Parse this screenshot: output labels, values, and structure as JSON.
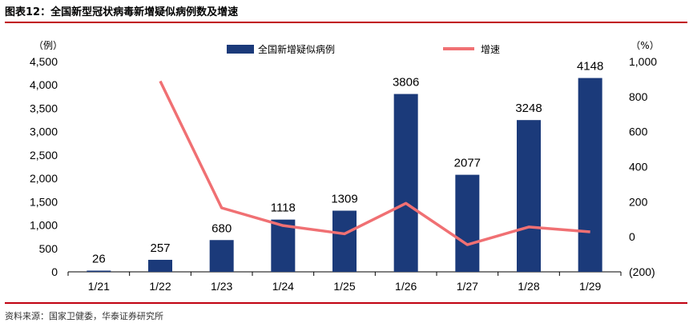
{
  "header": {
    "title": "图表12：全国新型冠状病毒新增疑似病例数及增速"
  },
  "footer": {
    "source": "资料来源：国家卫健委，华泰证券研究所"
  },
  "chart_data": {
    "type": "bar",
    "categories": [
      "1/21",
      "1/22",
      "1/23",
      "1/24",
      "1/25",
      "1/26",
      "1/27",
      "1/28",
      "1/29"
    ],
    "series": [
      {
        "name": "全国新增疑似病例",
        "type": "bar",
        "axis": "left",
        "color": "#1b3a7a",
        "values": [
          26,
          257,
          680,
          1118,
          1309,
          3806,
          2077,
          3248,
          4148
        ]
      },
      {
        "name": "增速",
        "type": "line",
        "axis": "right",
        "color": "#f07073",
        "values": [
          null,
          888,
          165,
          64,
          17,
          191,
          -45,
          56,
          28
        ]
      }
    ],
    "y_left": {
      "unit": "（例）",
      "ylim": [
        0,
        4500
      ],
      "ticks": [
        "0",
        "500",
        "1,000",
        "1,500",
        "2,000",
        "2,500",
        "3,000",
        "3,500",
        "4,000",
        "4,500"
      ]
    },
    "y_right": {
      "unit": "（%）",
      "ylim": [
        -200,
        1000
      ],
      "ticks": [
        "(200)",
        "0",
        "200",
        "400",
        "600",
        "800",
        "1,000"
      ]
    },
    "legend_position": "top",
    "data_labels": [
      "26",
      "257",
      "680",
      "1118",
      "1309",
      "3806",
      "2077",
      "3248",
      "4148"
    ]
  }
}
